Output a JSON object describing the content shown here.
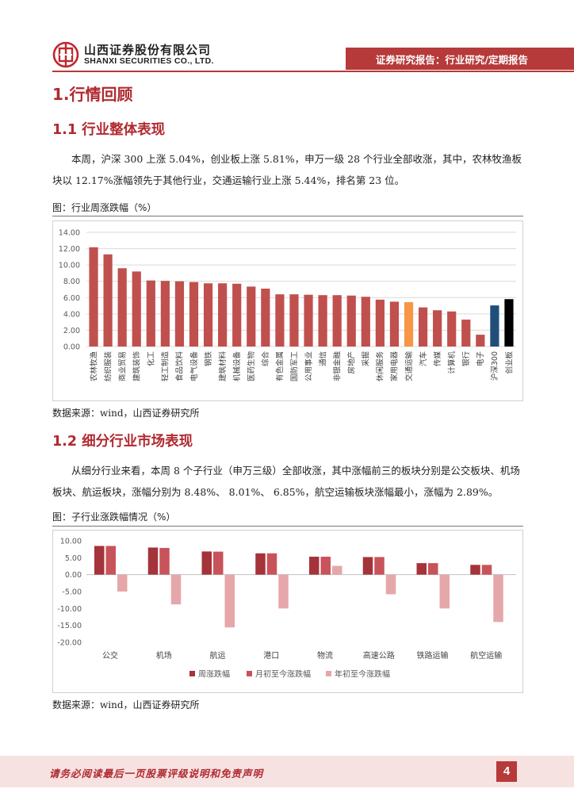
{
  "header": {
    "company_cn": "山西证券股份有限公司",
    "company_en": "SHANXI SECURITIES CO., LTD.",
    "report_type": "证券研究报告：行业研究/定期报告",
    "brand_color": "#b63a3a"
  },
  "section": {
    "title": "1.行情回顾",
    "sub1": {
      "title": "1.1  行业整体表现",
      "paragraph": "本周，沪深 300 上涨 5.04%，创业板上涨 5.81%，申万一级 28 个行业全部收涨，其中，农林牧渔板块以 12.17%涨幅领先于其他行业，交通运输行业上涨 5.44%，排名第 23 位。",
      "figure_caption": "图：行业周涨跌幅（%）",
      "source": "数据来源：wind，山西证券研究所"
    },
    "sub2": {
      "title": "1.2  细分行业市场表现",
      "paragraph": "从细分行业来看，本周 8 个子行业（申万三级）全部收涨，其中涨幅前三的板块分别是公交板块、机场板块、航运板块，涨幅分别为 8.48%、 8.01%、 6.85%，航空运输板块涨幅最小，涨幅为 2.89%。",
      "figure_caption": "图：子行业涨跌幅情况（%）",
      "source": "数据来源：wind，山西证券研究所"
    }
  },
  "footer": {
    "disclaimer": "请务必阅读最后一页股票评级说明和免责声明",
    "page_number": "4"
  },
  "chart_data": [
    {
      "type": "bar",
      "title": "",
      "categories": [
        "农林牧渔",
        "纺织服装",
        "商业贸易",
        "建筑装饰",
        "化工",
        "轻工制造",
        "食品饮料",
        "电气设备",
        "钢铁",
        "建筑材料",
        "机械设备",
        "医药生物",
        "综合",
        "有色金属",
        "国防军工",
        "公用事业",
        "通信",
        "非银金融",
        "房地产",
        "采掘",
        "休闲服务",
        "家用电器",
        "交通运输",
        "汽车",
        "传媒",
        "计算机",
        "银行",
        "电子",
        "沪深300",
        "创业板"
      ],
      "values": [
        12.17,
        11.3,
        9.6,
        9.2,
        8.1,
        8.05,
        8.0,
        7.9,
        7.75,
        7.75,
        7.7,
        7.35,
        7.1,
        6.4,
        6.4,
        6.35,
        6.3,
        6.3,
        6.25,
        6.1,
        5.75,
        5.5,
        5.44,
        4.8,
        4.45,
        4.3,
        3.3,
        1.45,
        5.04,
        5.81
      ],
      "colors": {
        "default": "#c0504d",
        "highlight": "#f79646",
        "hs300": "#1f4e79",
        "cyb": "#000000"
      },
      "highlight_index": 22,
      "hs300_index": 28,
      "cyb_index": 29,
      "ylim": [
        0,
        14
      ],
      "yticks": [
        "0.00",
        "2.00",
        "4.00",
        "6.00",
        "8.00",
        "10.00",
        "12.00",
        "14.00"
      ],
      "grid": true,
      "xlabel": "",
      "ylabel": ""
    },
    {
      "type": "bar",
      "title": "",
      "categories": [
        "公交",
        "机场",
        "航运",
        "港口",
        "物流",
        "高速公路",
        "铁路运输",
        "航空运输"
      ],
      "series": [
        {
          "name": "周涨跌幅",
          "color": "#a5333a",
          "values": [
            8.48,
            8.01,
            6.85,
            6.3,
            5.3,
            5.2,
            3.4,
            2.89
          ]
        },
        {
          "name": "月初至今涨跌幅",
          "color": "#c9535a",
          "values": [
            8.48,
            7.9,
            6.8,
            6.3,
            5.3,
            5.2,
            3.4,
            2.89
          ]
        },
        {
          "name": "年初至今涨跌幅",
          "color": "#e6a7aa",
          "values": [
            -5.0,
            -8.8,
            -15.6,
            -10.0,
            2.6,
            -5.8,
            -10.0,
            -14.0
          ]
        }
      ],
      "ylim": [
        -20,
        10
      ],
      "yticks": [
        "-20.00",
        "-15.00",
        "-10.00",
        "-5.00",
        "0.00",
        "5.00",
        "10.00"
      ],
      "legend": "bottom",
      "grid": false,
      "xlabel": "",
      "ylabel": ""
    }
  ]
}
